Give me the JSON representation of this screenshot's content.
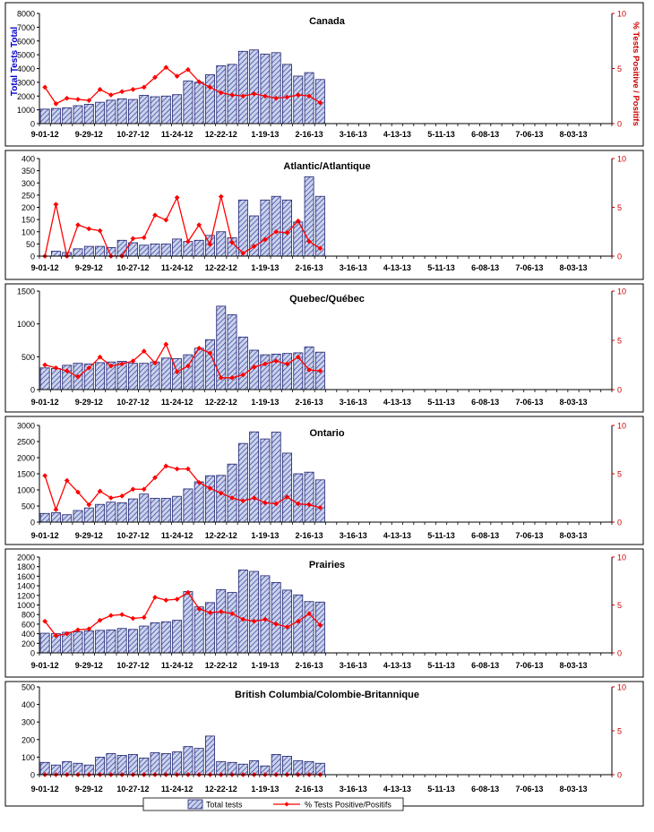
{
  "colors": {
    "bar_fill": "#c9d3ee",
    "bar_hatch": "#2a2f8a",
    "bar_stroke": "#1d1f6e",
    "line": "#ff0000",
    "left_axis_title": "#0000cc",
    "right_axis": "#cc0000"
  },
  "legend": {
    "bars_label": "Total tests",
    "line_label": "% Tests Positive/Positifs"
  },
  "chart_data": [
    {
      "type": "bar+line",
      "title": "Canada",
      "ylabel": "Total Tests Total",
      "y2label": "% Tests Positive / Positifs",
      "ylim": [
        0,
        8000
      ],
      "yticks": [
        0,
        1000,
        2000,
        3000,
        4000,
        5000,
        6000,
        7000,
        8000
      ],
      "y2lim": [
        0,
        10
      ],
      "y2ticks": [
        0,
        5,
        10
      ],
      "x_tick_labels": [
        "9-01-12",
        "9-29-12",
        "10-27-12",
        "11-24-12",
        "12-22-12",
        "1-19-13",
        "2-16-13",
        "3-16-13",
        "4-13-13",
        "5-11-13",
        "6-08-13",
        "7-06-13",
        "8-03-13"
      ],
      "total_tests": [
        1050,
        1100,
        1150,
        1300,
        1400,
        1550,
        1700,
        1800,
        1750,
        2050,
        1950,
        2000,
        2100,
        3100,
        3000,
        3550,
        4200,
        4300,
        5250,
        5350,
        5050,
        5150,
        4300,
        3450,
        3700,
        3200
      ],
      "percent_positive": [
        3.3,
        1.8,
        2.3,
        2.2,
        2.1,
        3.1,
        2.6,
        2.9,
        3.1,
        3.3,
        4.2,
        5.1,
        4.3,
        4.9,
        3.8,
        3.3,
        2.8,
        2.6,
        2.5,
        2.7,
        2.5,
        2.3,
        2.4,
        2.6,
        2.5,
        1.9
      ]
    },
    {
      "type": "bar+line",
      "title": "Atlantic/Atlantique",
      "ylim": [
        0,
        400
      ],
      "yticks": [
        0,
        50,
        100,
        150,
        200,
        250,
        300,
        350,
        400
      ],
      "y2lim": [
        0,
        10
      ],
      "y2ticks": [
        0,
        5,
        10
      ],
      "x_tick_labels": [
        "9-01-12",
        "9-29-12",
        "10-27-12",
        "11-24-12",
        "12-22-12",
        "1-19-13",
        "2-16-13",
        "3-16-13",
        "4-13-13",
        "5-11-13",
        "6-08-13",
        "7-06-13",
        "8-03-13"
      ],
      "total_tests": [
        0,
        20,
        15,
        30,
        40,
        40,
        35,
        65,
        55,
        45,
        50,
        50,
        70,
        60,
        65,
        85,
        100,
        75,
        230,
        165,
        230,
        245,
        230,
        140,
        325,
        245
      ],
      "percent_positive": [
        0,
        5.3,
        0,
        3.2,
        2.8,
        2.6,
        0,
        0,
        1.8,
        1.9,
        4.2,
        3.7,
        6.0,
        1.5,
        3.2,
        1.2,
        6.1,
        1.4,
        0.3,
        1.0,
        1.7,
        2.5,
        2.4,
        3.6,
        1.5,
        0.8
      ]
    },
    {
      "type": "bar+line",
      "title": "Quebec/Québec",
      "ylim": [
        0,
        1500
      ],
      "yticks": [
        0,
        500,
        1000,
        1500
      ],
      "y2lim": [
        0,
        10
      ],
      "y2ticks": [
        0,
        5,
        10
      ],
      "x_tick_labels": [
        "9-01-12",
        "9-29-12",
        "10-27-12",
        "11-24-12",
        "12-22-12",
        "1-19-13",
        "2-16-13",
        "3-16-13",
        "4-13-13",
        "5-11-13",
        "6-08-13",
        "7-06-13",
        "8-03-13"
      ],
      "total_tests": [
        330,
        320,
        370,
        400,
        390,
        410,
        420,
        430,
        400,
        400,
        420,
        480,
        470,
        530,
        630,
        760,
        1270,
        1140,
        800,
        600,
        530,
        540,
        550,
        560,
        650,
        570
      ],
      "percent_positive": [
        2.5,
        2.2,
        1.9,
        1.3,
        2.2,
        3.3,
        2.4,
        2.6,
        2.9,
        3.9,
        2.7,
        4.6,
        1.8,
        2.4,
        4.2,
        3.7,
        1.2,
        1.2,
        1.5,
        2.3,
        2.6,
        2.9,
        2.6,
        3.3,
        2.0,
        1.9
      ]
    },
    {
      "type": "bar+line",
      "title": "Ontario",
      "ylim": [
        0,
        3000
      ],
      "yticks": [
        0,
        500,
        1000,
        1500,
        2000,
        2500,
        3000
      ],
      "y2lim": [
        0,
        10
      ],
      "y2ticks": [
        0,
        5,
        10
      ],
      "x_tick_labels": [
        "9-01-12",
        "9-29-12",
        "10-27-12",
        "11-24-12",
        "12-22-12",
        "1-19-13",
        "2-16-13",
        "3-16-13",
        "4-13-13",
        "5-11-13",
        "6-08-13",
        "7-06-13",
        "8-03-13"
      ],
      "total_tests": [
        270,
        290,
        230,
        360,
        440,
        550,
        620,
        600,
        720,
        870,
        740,
        740,
        800,
        1030,
        1250,
        1440,
        1450,
        1800,
        2440,
        2800,
        2580,
        2790,
        2140,
        1500,
        1550,
        1310
      ],
      "percent_positive": [
        4.8,
        1.3,
        4.3,
        3.1,
        1.8,
        3.2,
        2.5,
        2.7,
        3.4,
        3.4,
        4.6,
        5.8,
        5.5,
        5.5,
        4.1,
        3.5,
        3.0,
        2.5,
        2.2,
        2.5,
        2.0,
        1.9,
        2.6,
        1.9,
        1.8,
        1.5
      ]
    },
    {
      "type": "bar+line",
      "title": "Prairies",
      "ylim": [
        0,
        2000
      ],
      "yticks": [
        0,
        200,
        400,
        600,
        800,
        1000,
        1200,
        1400,
        1600,
        1800,
        2000
      ],
      "y2lim": [
        0,
        10
      ],
      "y2ticks": [
        0,
        5,
        10
      ],
      "x_tick_labels": [
        "9-01-12",
        "9-29-12",
        "10-27-12",
        "11-24-12",
        "12-22-12",
        "1-19-13",
        "2-16-13",
        "3-16-13",
        "4-13-13",
        "5-11-13",
        "6-08-13",
        "7-06-13",
        "8-03-13"
      ],
      "total_tests": [
        410,
        400,
        430,
        440,
        460,
        470,
        480,
        510,
        490,
        560,
        630,
        650,
        680,
        1280,
        960,
        1050,
        1320,
        1260,
        1730,
        1700,
        1610,
        1470,
        1310,
        1210,
        1070,
        1060
      ],
      "percent_positive": [
        3.3,
        1.8,
        2.0,
        2.4,
        2.5,
        3.4,
        3.9,
        4.0,
        3.6,
        3.7,
        5.8,
        5.5,
        5.6,
        6.3,
        4.6,
        4.2,
        4.3,
        4.1,
        3.5,
        3.3,
        3.5,
        3.0,
        2.7,
        3.3,
        4.1,
        2.9
      ]
    },
    {
      "type": "bar+line",
      "title": "British Columbia/Colombie-Britannique",
      "ylim": [
        0,
        500
      ],
      "yticks": [
        0,
        100,
        200,
        300,
        400,
        500
      ],
      "y2lim": [
        0,
        10
      ],
      "y2ticks": [
        0,
        5,
        10
      ],
      "x_tick_labels": [
        "9-01-12",
        "9-29-12",
        "10-27-12",
        "11-24-12",
        "12-22-12",
        "1-19-13",
        "2-16-13",
        "3-16-13",
        "4-13-13",
        "5-11-13",
        "6-08-13",
        "7-06-13",
        "8-03-13"
      ],
      "total_tests": [
        70,
        55,
        75,
        65,
        55,
        100,
        120,
        110,
        115,
        95,
        125,
        120,
        130,
        160,
        150,
        220,
        75,
        70,
        60,
        80,
        50,
        115,
        105,
        80,
        75,
        65
      ],
      "percent_positive": [
        0,
        0,
        0,
        0,
        0,
        0,
        0,
        0,
        0,
        0,
        0,
        0,
        0,
        0,
        0,
        0,
        0,
        0,
        0,
        0,
        0,
        0,
        0,
        0,
        0,
        0
      ]
    }
  ]
}
